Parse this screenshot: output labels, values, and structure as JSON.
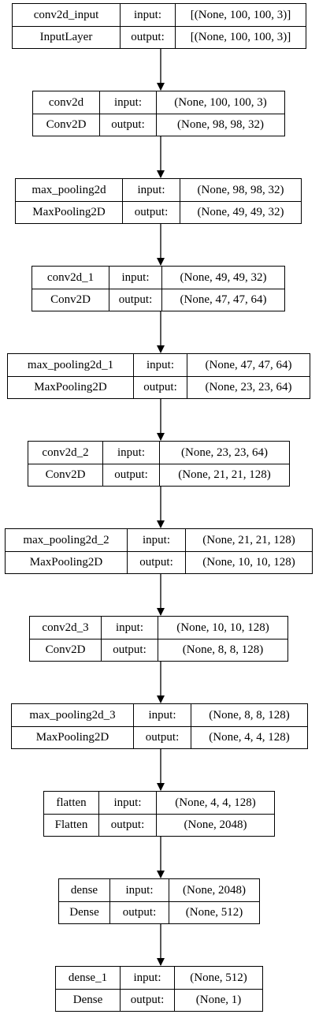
{
  "layers": [
    {
      "name": "conv2d_input",
      "type": "InputLayer",
      "input_label": "input:",
      "output_label": "output:",
      "input_shape": "[(None, 100, 100, 3)]",
      "output_shape": "[(None, 100, 100, 3)]"
    },
    {
      "name": "conv2d",
      "type": "Conv2D",
      "input_label": "input:",
      "output_label": "output:",
      "input_shape": "(None, 100, 100, 3)",
      "output_shape": "(None, 98, 98, 32)"
    },
    {
      "name": "max_pooling2d",
      "type": "MaxPooling2D",
      "input_label": "input:",
      "output_label": "output:",
      "input_shape": "(None, 98, 98, 32)",
      "output_shape": "(None, 49, 49, 32)"
    },
    {
      "name": "conv2d_1",
      "type": "Conv2D",
      "input_label": "input:",
      "output_label": "output:",
      "input_shape": "(None, 49, 49, 32)",
      "output_shape": "(None, 47, 47, 64)"
    },
    {
      "name": "max_pooling2d_1",
      "type": "MaxPooling2D",
      "input_label": "input:",
      "output_label": "output:",
      "input_shape": "(None, 47, 47, 64)",
      "output_shape": "(None, 23, 23, 64)"
    },
    {
      "name": "conv2d_2",
      "type": "Conv2D",
      "input_label": "input:",
      "output_label": "output:",
      "input_shape": "(None, 23, 23, 64)",
      "output_shape": "(None, 21, 21, 128)"
    },
    {
      "name": "max_pooling2d_2",
      "type": "MaxPooling2D",
      "input_label": "input:",
      "output_label": "output:",
      "input_shape": "(None, 21, 21, 128)",
      "output_shape": "(None, 10, 10, 128)"
    },
    {
      "name": "conv2d_3",
      "type": "Conv2D",
      "input_label": "input:",
      "output_label": "output:",
      "input_shape": "(None, 10, 10, 128)",
      "output_shape": "(None, 8, 8, 128)"
    },
    {
      "name": "max_pooling2d_3",
      "type": "MaxPooling2D",
      "input_label": "input:",
      "output_label": "output:",
      "input_shape": "(None, 8, 8, 128)",
      "output_shape": "(None, 4, 4, 128)"
    },
    {
      "name": "flatten",
      "type": "Flatten",
      "input_label": "input:",
      "output_label": "output:",
      "input_shape": "(None, 4, 4, 128)",
      "output_shape": "(None, 2048)"
    },
    {
      "name": "dense",
      "type": "Dense",
      "input_label": "input:",
      "output_label": "output:",
      "input_shape": "(None, 2048)",
      "output_shape": "(None, 512)"
    },
    {
      "name": "dense_1",
      "type": "Dense",
      "input_label": "input:",
      "output_label": "output:",
      "input_shape": "(None, 512)",
      "output_shape": "(None, 1)"
    }
  ],
  "edges": [
    [
      0,
      1
    ],
    [
      1,
      2
    ],
    [
      2,
      3
    ],
    [
      3,
      4
    ],
    [
      4,
      5
    ],
    [
      5,
      6
    ],
    [
      6,
      7
    ],
    [
      7,
      8
    ],
    [
      8,
      9
    ],
    [
      9,
      10
    ],
    [
      10,
      11
    ]
  ],
  "colors": {
    "stroke": "#000000",
    "fill": "#ffffff",
    "text": "#000000"
  }
}
